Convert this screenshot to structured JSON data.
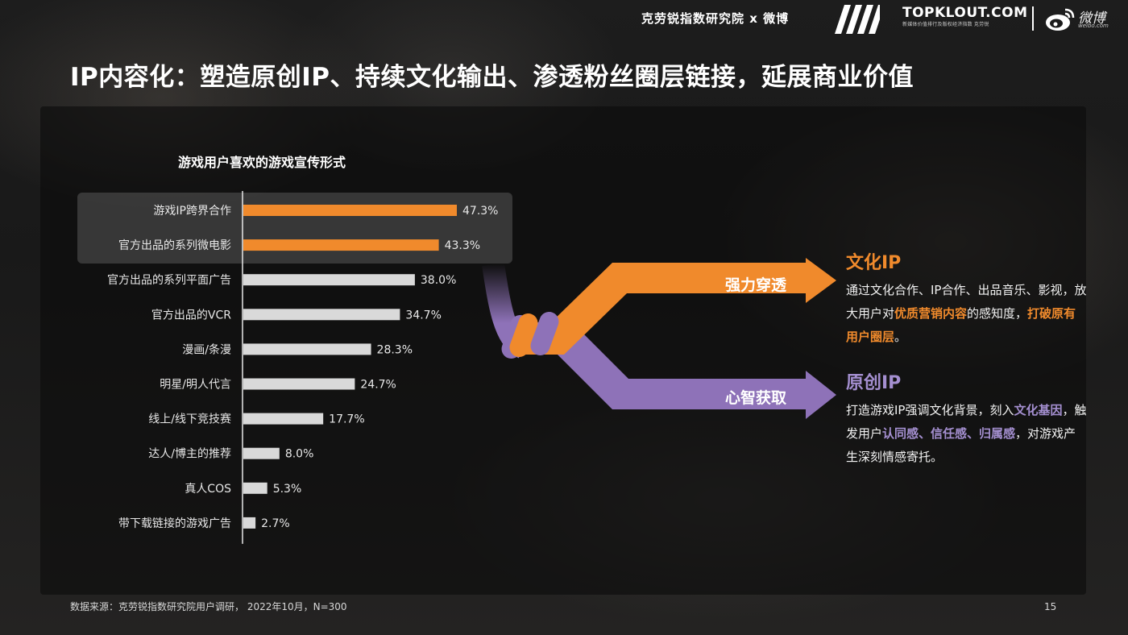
{
  "header": {
    "brand_text": "克劳锐指数研究院 x 微博",
    "topklout_name": "TOPKLOUT.COM",
    "topklout_sub": "新媒体价值排行及版权经济指数",
    "topklout_cn": "克劳锐",
    "weibo_cn": "微博",
    "weibo_en": "weibo.com"
  },
  "title": "IP内容化：塑造原创IP、持续文化输出、渗透粉丝圈层链接，延展商业价值",
  "chart_data": {
    "type": "bar",
    "orientation": "horizontal",
    "title": "游戏用户喜欢的游戏宣传形式",
    "categories": [
      "游戏IP跨界合作",
      "官方出品的系列微电影",
      "官方出品的系列平面广告",
      "官方出品的VCR",
      "漫画/条漫",
      "明星/明人代言",
      "线上/线下竞技赛",
      "达人/博主的推荐",
      "真人COS",
      "带下载链接的游戏广告"
    ],
    "values": [
      47.3,
      43.3,
      38.0,
      34.7,
      28.3,
      24.7,
      17.7,
      8.0,
      5.3,
      2.7
    ],
    "value_labels": [
      "47.3%",
      "43.3%",
      "38.0%",
      "34.7%",
      "28.3%",
      "24.7%",
      "17.7%",
      "8.0%",
      "5.3%",
      "2.7%"
    ],
    "unit": "%",
    "highlighted": [
      0,
      1
    ],
    "xlim": [
      0,
      50
    ],
    "grid": false,
    "colors": {
      "highlight": "#f08a2c",
      "default": "#d9d9d9"
    }
  },
  "flow": {
    "top_label": "强力穿透",
    "bottom_label": "心智获取",
    "colors": {
      "orange": "#f08a2c",
      "purple": "#8e72b8"
    }
  },
  "insights": [
    {
      "heading": "文化IP",
      "body": [
        {
          "t": "通过文化合作、IP合作、出品音乐、影视，放大用户对",
          "hl": false
        },
        {
          "t": "优质营销内容",
          "hl": true
        },
        {
          "t": "的感知度，",
          "hl": false
        },
        {
          "t": "打破原有用户圈层",
          "hl": true
        },
        {
          "t": "。",
          "hl": false
        }
      ]
    },
    {
      "heading": "原创IP",
      "body": [
        {
          "t": "打造游戏IP强调文化背景，刻入",
          "hl": false
        },
        {
          "t": "文化基因",
          "hl": true
        },
        {
          "t": "，触发用户",
          "hl": false
        },
        {
          "t": "认同感、信任感、归属感",
          "hl": true
        },
        {
          "t": "，对游戏产生深刻情感寄托。",
          "hl": false
        }
      ]
    }
  ],
  "footer": {
    "source": "数据来源：克劳锐指数研究院用户调研， 2022年10月，N=300",
    "page_number": "15"
  }
}
